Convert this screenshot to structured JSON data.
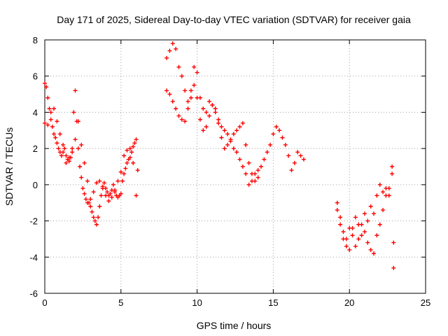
{
  "chart_data": {
    "type": "scatter",
    "title": "Day 171 of 2025, Sidereal Day-to-day VTEC variation (SDTVAR) for receiver gaia",
    "xlabel": "GPS time / hours",
    "ylabel": "SDTVAR / TECUs",
    "xlim": [
      0,
      25
    ],
    "ylim": [
      -6,
      8
    ],
    "xticks": [
      0,
      5,
      10,
      15,
      20,
      25
    ],
    "yticks": [
      -6,
      -4,
      -2,
      0,
      2,
      4,
      6,
      8
    ],
    "grid": true,
    "marker": "+",
    "color": "#ff0000",
    "series": [
      {
        "name": "segment-1",
        "x": [
          0.0,
          0.1,
          0.2,
          0.3,
          0.4,
          0.5,
          0.6,
          0.7,
          0.8,
          0.9,
          1.0,
          1.1,
          1.2,
          1.3,
          1.4,
          1.5,
          1.6,
          1.7,
          1.8,
          1.9,
          2.0,
          2.1,
          2.2,
          2.3,
          2.4,
          2.5,
          2.6,
          2.7,
          2.8,
          2.9,
          3.0,
          3.1,
          3.2,
          3.3,
          3.4,
          3.5,
          3.6,
          3.7,
          3.8,
          3.9,
          4.0,
          4.1,
          4.2,
          4.3,
          4.4,
          4.5,
          4.6,
          4.7,
          4.8,
          4.9,
          5.0,
          5.1,
          5.2,
          5.3,
          5.4,
          5.5,
          5.6,
          5.7,
          5.8,
          5.9,
          6.0,
          6.1
        ],
        "y": [
          5.6,
          5.4,
          4.8,
          4.2,
          3.6,
          3.2,
          2.8,
          2.6,
          2.3,
          2.0,
          1.8,
          1.6,
          2.2,
          2.0,
          1.6,
          1.4,
          1.3,
          1.5,
          2.0,
          4.0,
          5.2,
          3.5,
          2.0,
          1.0,
          0.4,
          -0.2,
          -0.5,
          -0.8,
          -1.0,
          -1.0,
          -1.2,
          -1.5,
          -1.8,
          -2.0,
          -2.2,
          -1.8,
          -1.2,
          -0.6,
          -0.2,
          0.1,
          -0.2,
          -0.4,
          -0.6,
          -0.5,
          -0.3,
          0.0,
          -0.4,
          -0.6,
          -0.7,
          -0.6,
          -0.5,
          0.2,
          0.6,
          0.9,
          1.2,
          1.4,
          1.5,
          1.8,
          2.1,
          2.3,
          2.5,
          0.8
        ]
      },
      {
        "name": "segment-1b",
        "x": [
          0.0,
          0.2,
          0.4,
          0.6,
          0.8,
          1.0,
          1.2,
          1.4,
          1.6,
          1.8,
          2.0,
          2.2,
          2.4,
          2.6,
          2.8,
          3.0,
          3.2,
          3.4,
          3.6,
          3.8,
          4.0,
          4.2,
          4.4,
          4.6,
          4.8,
          5.0,
          5.2,
          5.4,
          5.6,
          5.8,
          6.0
        ],
        "y": [
          3.4,
          3.3,
          4.0,
          4.2,
          3.5,
          2.8,
          1.8,
          1.2,
          1.5,
          1.8,
          2.5,
          3.5,
          2.2,
          1.2,
          0.2,
          -0.8,
          -0.4,
          0.1,
          0.2,
          -0.1,
          -0.6,
          -0.9,
          -0.7,
          -0.3,
          0.2,
          0.7,
          1.6,
          1.9,
          2.0,
          1.2,
          -0.6
        ]
      },
      {
        "name": "segment-2",
        "x": [
          8.0,
          8.2,
          8.4,
          8.6,
          8.8,
          9.0,
          9.2,
          9.4,
          9.6,
          9.8,
          10.0,
          10.2,
          10.4,
          10.6,
          10.8,
          11.0,
          11.2,
          11.4,
          11.6,
          11.8,
          12.0,
          12.2,
          12.4,
          12.6,
          12.8,
          13.0,
          13.2,
          13.4,
          13.6,
          13.8,
          14.0,
          14.2,
          14.4,
          14.6,
          14.8,
          15.0,
          15.2,
          15.4,
          15.6,
          15.8,
          16.0,
          16.2,
          16.4,
          16.6,
          16.8,
          17.0
        ],
        "y": [
          7.0,
          7.4,
          7.8,
          7.5,
          6.5,
          6.0,
          5.2,
          4.6,
          5.2,
          6.5,
          6.2,
          4.8,
          4.2,
          4.0,
          4.6,
          4.4,
          4.0,
          3.6,
          3.2,
          3.0,
          2.8,
          2.4,
          2.0,
          1.8,
          1.4,
          1.0,
          0.6,
          0.0,
          0.2,
          0.6,
          0.8,
          1.0,
          1.4,
          1.8,
          2.2,
          2.8,
          3.2,
          3.0,
          2.6,
          2.2,
          1.6,
          0.8,
          1.2,
          1.8,
          1.6,
          1.4
        ]
      },
      {
        "name": "segment-2b",
        "x": [
          8.0,
          8.2,
          8.4,
          8.6,
          8.8,
          9.0,
          9.2,
          9.4,
          9.6,
          9.8,
          10.0,
          10.2,
          10.4,
          10.6,
          10.8,
          11.0,
          11.2,
          11.4,
          11.6,
          11.8,
          12.0,
          12.2,
          12.4,
          12.6,
          12.8,
          13.0,
          13.2,
          13.4,
          13.6,
          13.8,
          14.0
        ],
        "y": [
          5.2,
          5.0,
          4.6,
          4.2,
          3.8,
          3.6,
          3.5,
          4.2,
          4.8,
          5.5,
          4.8,
          3.6,
          3.0,
          3.2,
          3.8,
          4.4,
          4.2,
          3.4,
          2.6,
          2.0,
          2.2,
          2.5,
          2.8,
          3.0,
          3.2,
          3.4,
          2.2,
          1.2,
          0.6,
          0.2,
          0.4
        ]
      },
      {
        "name": "segment-3",
        "x": [
          19.2,
          19.4,
          19.6,
          19.8,
          20.0,
          20.2,
          20.4,
          20.6,
          20.8,
          21.0,
          21.2,
          21.4,
          21.6,
          21.8,
          22.0,
          22.2,
          22.4,
          22.6,
          22.8,
          22.9
        ],
        "y": [
          -1.0,
          -1.8,
          -2.6,
          -3.0,
          -2.4,
          -2.8,
          -3.4,
          -3.0,
          -2.2,
          -2.6,
          -3.2,
          -3.6,
          -3.8,
          -2.8,
          -2.2,
          -1.4,
          -0.6,
          -0.2,
          0.6,
          -4.6
        ]
      },
      {
        "name": "segment-3b",
        "x": [
          19.2,
          19.4,
          19.6,
          19.8,
          20.0,
          20.2,
          20.4,
          20.6,
          20.8,
          21.0,
          21.2,
          21.4,
          21.6,
          21.8,
          22.0,
          22.2,
          22.4,
          22.6,
          22.8,
          22.9
        ],
        "y": [
          -1.4,
          -2.2,
          -3.0,
          -3.4,
          -3.6,
          -2.4,
          -1.8,
          -2.2,
          -2.8,
          -1.6,
          -2.0,
          -1.2,
          -1.6,
          -0.6,
          0.0,
          -0.4,
          -0.2,
          -0.6,
          1.0,
          -3.2
        ]
      }
    ]
  }
}
